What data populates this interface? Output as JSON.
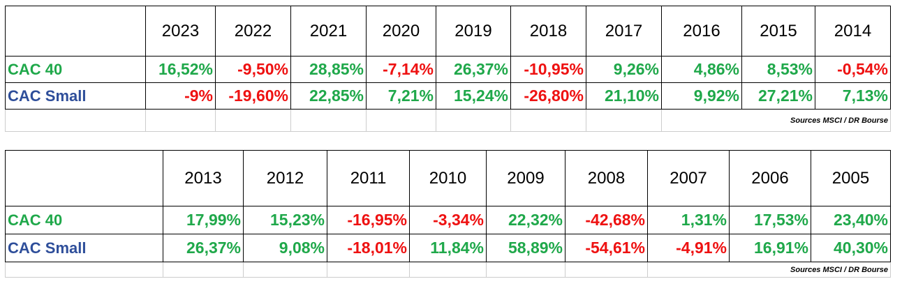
{
  "table1": {
    "years": [
      "2023",
      "2022",
      "2021",
      "2020",
      "2019",
      "2018",
      "2017",
      "2016",
      "2015",
      "2014"
    ],
    "rows": [
      {
        "label": "CAC 40",
        "values": [
          "16,52%",
          "-9,50%",
          "28,85%",
          "-7,14%",
          "26,37%",
          "-10,95%",
          "9,26%",
          "4,86%",
          "8,53%",
          "-0,54%"
        ]
      },
      {
        "label": "CAC Small",
        "values": [
          "-9%",
          "-19,60%",
          "22,85%",
          "7,21%",
          "15,24%",
          "-26,80%",
          "21,10%",
          "9,92%",
          "27,21%",
          "7,13%"
        ]
      }
    ],
    "source": "Sources MSCI / DR Bourse"
  },
  "table2": {
    "years": [
      "2013",
      "2012",
      "2011",
      "2010",
      "2009",
      "2008",
      "2007",
      "2006",
      "2005"
    ],
    "rows": [
      {
        "label": "CAC 40",
        "values": [
          "17,99%",
          "15,23%",
          "-16,95%",
          "-3,34%",
          "22,32%",
          "-42,68%",
          "1,31%",
          "17,53%",
          "23,40%"
        ]
      },
      {
        "label": "CAC Small",
        "values": [
          "26,37%",
          "9,08%",
          "-18,01%",
          "11,84%",
          "58,89%",
          "-54,61%",
          "-4,91%",
          "16,91%",
          "40,30%"
        ]
      }
    ],
    "source": "Sources MSCI / DR Bourse"
  },
  "colors": {
    "positive": "#1fa84a",
    "negative": "#ee1111",
    "cac40_label": "#1fa84a",
    "cac_small_label": "#2e4e9a"
  }
}
